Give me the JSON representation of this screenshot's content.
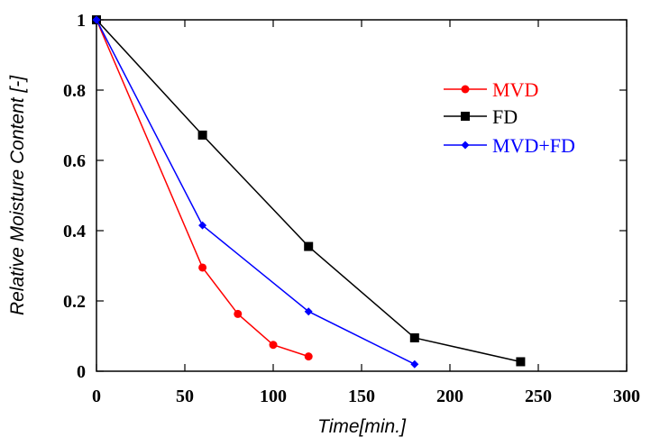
{
  "chart_data": {
    "type": "line",
    "title": "",
    "xlabel": "Time[min.]",
    "ylabel": "Relative Moisture Content [-]",
    "xlim": [
      0,
      300
    ],
    "ylim": [
      0,
      1
    ],
    "x_ticks": [
      "0",
      "50",
      "100",
      "150",
      "200",
      "250",
      "300"
    ],
    "y_ticks": [
      "0",
      "0.2",
      "0.4",
      "0.6",
      "0.8",
      "1"
    ],
    "grid": false,
    "legend_position": "top-right",
    "series": [
      {
        "name": "MVD",
        "color": "#ff0000",
        "marker": "circle",
        "x": [
          0,
          60,
          80,
          100,
          120
        ],
        "y": [
          1.0,
          0.295,
          0.163,
          0.075,
          0.042
        ]
      },
      {
        "name": "FD",
        "color": "#000000",
        "marker": "square",
        "x": [
          0,
          60,
          120,
          180,
          240
        ],
        "y": [
          1.0,
          0.672,
          0.355,
          0.095,
          0.027
        ]
      },
      {
        "name": "MVD+FD",
        "color": "#0000ff",
        "marker": "diamond",
        "x": [
          0,
          60,
          120,
          180
        ],
        "y": [
          1.0,
          0.415,
          0.17,
          0.02
        ]
      }
    ]
  }
}
